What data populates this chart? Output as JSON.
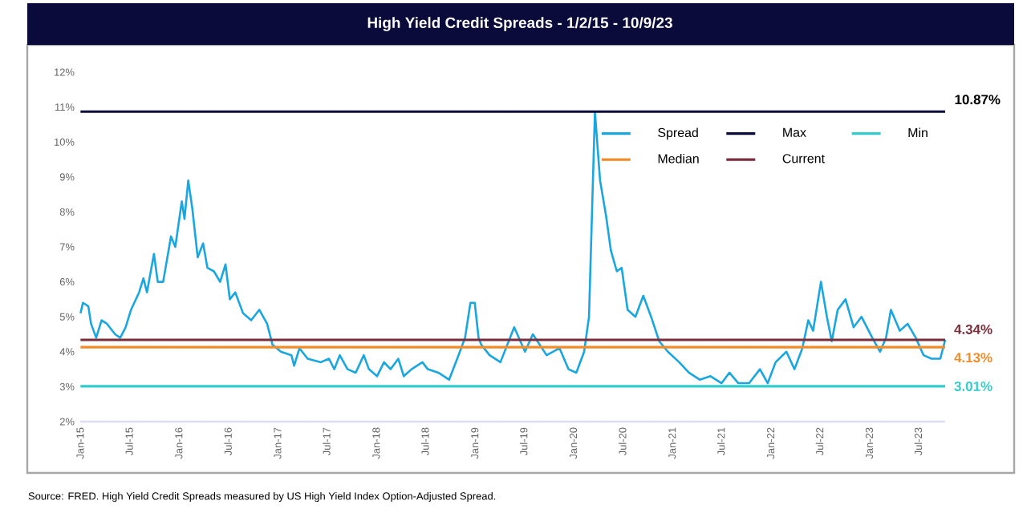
{
  "chart_data": {
    "type": "line",
    "title": "High Yield Credit Spreads - 1/2/15 - 10/9/23",
    "legend": "top right",
    "line_style": "solid",
    "xlim": [
      "2015-01-01",
      "2023-10-09"
    ],
    "xticks": [
      {
        "value": "2015-01-01",
        "label": "Jan-15"
      },
      {
        "value": "2015-07-01",
        "label": "Jul-15"
      },
      {
        "value": "2016-01-01",
        "label": "Jan-16"
      },
      {
        "value": "2016-07-01",
        "label": "Jul-16"
      },
      {
        "value": "2017-01-01",
        "label": "Jan-17"
      },
      {
        "value": "2017-07-01",
        "label": "Jul-17"
      },
      {
        "value": "2018-01-01",
        "label": "Jan-18"
      },
      {
        "value": "2018-07-01",
        "label": "Jul-18"
      },
      {
        "value": "2019-01-01",
        "label": "Jan-19"
      },
      {
        "value": "2019-07-01",
        "label": "Jul-19"
      },
      {
        "value": "2020-01-01",
        "label": "Jan-20"
      },
      {
        "value": "2020-07-01",
        "label": "Jul-20"
      },
      {
        "value": "2021-01-01",
        "label": "Jan-21"
      },
      {
        "value": "2021-07-01",
        "label": "Jul-21"
      },
      {
        "value": "2022-01-01",
        "label": "Jan-22"
      },
      {
        "value": "2022-07-01",
        "label": "Jul-22"
      },
      {
        "value": "2023-01-01",
        "label": "Jan-23"
      },
      {
        "value": "2023-07-01",
        "label": "Jul-23"
      }
    ],
    "ylim": [
      2,
      12
    ],
    "yticks": [
      {
        "value": 2,
        "label": "2%"
      },
      {
        "value": 3,
        "label": "3%"
      },
      {
        "value": 4,
        "label": "4%"
      },
      {
        "value": 5,
        "label": "5%"
      },
      {
        "value": 6,
        "label": "6%"
      },
      {
        "value": 7,
        "label": "7%"
      },
      {
        "value": 8,
        "label": "8%"
      },
      {
        "value": 9,
        "label": "9%"
      },
      {
        "value": 10,
        "label": "10%"
      },
      {
        "value": 11,
        "label": "11%"
      },
      {
        "value": 12,
        "label": "12%"
      }
    ],
    "series": [
      {
        "name": "Spread",
        "color": "#1aa7e0",
        "x": [
          "2015-01-02",
          "2015-01-11",
          "2015-01-31",
          "2015-02-10",
          "2015-03-01",
          "2015-03-21",
          "2015-04-10",
          "2015-05-10",
          "2015-05-29",
          "2015-06-18",
          "2015-07-08",
          "2015-08-07",
          "2015-08-23",
          "2015-09-05",
          "2015-10-01",
          "2015-10-15",
          "2015-11-04",
          "2015-12-03",
          "2015-12-19",
          "2016-01-12",
          "2016-01-22",
          "2016-02-05",
          "2016-02-20",
          "2016-03-11",
          "2016-03-31",
          "2016-04-16",
          "2016-05-10",
          "2016-06-02",
          "2016-06-22",
          "2016-07-08",
          "2016-07-28",
          "2016-08-26",
          "2016-09-25",
          "2016-10-25",
          "2016-11-23",
          "2016-12-13",
          "2017-01-13",
          "2017-02-21",
          "2017-03-03",
          "2017-03-23",
          "2017-04-22",
          "2017-06-10",
          "2017-07-10",
          "2017-07-30",
          "2017-08-19",
          "2017-09-17",
          "2017-10-17",
          "2017-11-16",
          "2017-12-05",
          "2018-01-04",
          "2018-01-30",
          "2018-02-23",
          "2018-03-24",
          "2018-04-13",
          "2018-05-12",
          "2018-06-21",
          "2018-07-11",
          "2018-08-19",
          "2018-09-28",
          "2018-10-28",
          "2018-11-26",
          "2018-12-16",
          "2019-01-01",
          "2019-01-15",
          "2019-01-25",
          "2019-02-25",
          "2019-04-06",
          "2019-05-27",
          "2019-07-06",
          "2019-08-04",
          "2019-09-24",
          "2019-11-11",
          "2019-12-14",
          "2020-01-12",
          "2020-02-10",
          "2020-02-28",
          "2020-03-21",
          "2020-04-09",
          "2020-05-01",
          "2020-05-19",
          "2020-06-10",
          "2020-06-28",
          "2020-07-20",
          "2020-08-18",
          "2020-09-16",
          "2020-10-15",
          "2020-11-14",
          "2020-12-16",
          "2021-01-27",
          "2021-03-04",
          "2021-04-13",
          "2021-05-23",
          "2021-07-03",
          "2021-08-01",
          "2021-09-03",
          "2021-10-13",
          "2021-11-22",
          "2021-12-21",
          "2022-01-19",
          "2022-02-28",
          "2022-03-30",
          "2022-04-28",
          "2022-05-20",
          "2022-06-07",
          "2022-07-06",
          "2022-07-28",
          "2022-08-15",
          "2022-09-06",
          "2022-10-05",
          "2022-11-04",
          "2022-12-03",
          "2023-01-12",
          "2023-02-10",
          "2023-03-04",
          "2023-03-22",
          "2023-04-24",
          "2023-05-23",
          "2023-06-22",
          "2023-07-21",
          "2023-08-19",
          "2023-09-21",
          "2023-10-09"
        ],
        "values": [
          5.1,
          5.4,
          5.3,
          4.8,
          4.4,
          4.9,
          4.8,
          4.5,
          4.4,
          4.7,
          5.2,
          5.7,
          6.1,
          5.7,
          6.8,
          6.0,
          6.0,
          7.3,
          7.0,
          8.3,
          7.8,
          8.9,
          8.1,
          6.7,
          7.1,
          6.4,
          6.3,
          6.0,
          6.5,
          5.5,
          5.7,
          5.1,
          4.9,
          5.2,
          4.8,
          4.2,
          4.0,
          3.9,
          3.6,
          4.1,
          3.8,
          3.7,
          3.8,
          3.5,
          3.9,
          3.5,
          3.4,
          3.9,
          3.5,
          3.3,
          3.7,
          3.5,
          3.8,
          3.3,
          3.5,
          3.7,
          3.5,
          3.4,
          3.2,
          3.8,
          4.4,
          5.4,
          5.4,
          4.4,
          4.2,
          3.9,
          3.7,
          4.7,
          4.0,
          4.5,
          3.9,
          4.1,
          3.5,
          3.4,
          4.0,
          5.0,
          10.87,
          8.9,
          7.9,
          6.9,
          6.3,
          6.4,
          5.2,
          5.0,
          5.6,
          5.0,
          4.3,
          4.0,
          3.7,
          3.4,
          3.2,
          3.3,
          3.1,
          3.4,
          3.1,
          3.1,
          3.5,
          3.1,
          3.7,
          4.0,
          3.5,
          4.1,
          4.9,
          4.6,
          6.0,
          5.0,
          4.3,
          5.2,
          5.5,
          4.7,
          5.0,
          4.4,
          4.0,
          4.4,
          5.2,
          4.6,
          4.8,
          4.4,
          3.9,
          3.8,
          3.8,
          4.34
        ]
      },
      {
        "name": "Max",
        "color": "#0b0b3b",
        "x": [
          "2015-01-02",
          "2023-10-09"
        ],
        "values": [
          10.87,
          10.87
        ]
      },
      {
        "name": "Min",
        "color": "#33cccc",
        "x": [
          "2015-01-02",
          "2023-10-09"
        ],
        "values": [
          3.01,
          3.01
        ]
      },
      {
        "name": "Median",
        "color": "#f28c28",
        "x": [
          "2015-01-02",
          "2023-10-09"
        ],
        "values": [
          4.13,
          4.13
        ]
      },
      {
        "name": "Current",
        "color": "#7b2d3a",
        "x": [
          "2015-01-02",
          "2023-10-09"
        ],
        "values": [
          4.34,
          4.34
        ]
      }
    ],
    "annotations": [
      {
        "text": "10.87%",
        "x": "2023-10-09",
        "y": 10.87
      },
      {
        "text": "4.34%",
        "x": "2023-10-09",
        "y": 4.34
      },
      {
        "text": "4.13%",
        "x": "2023-10-09",
        "y": 4.13
      },
      {
        "text": "3.01%",
        "x": "2023-10-09",
        "y": 3.01
      },
      "Source: FRED. High Yield Credit Spreads measured by US High Yield Index Option-Adjusted Spread."
    ]
  }
}
